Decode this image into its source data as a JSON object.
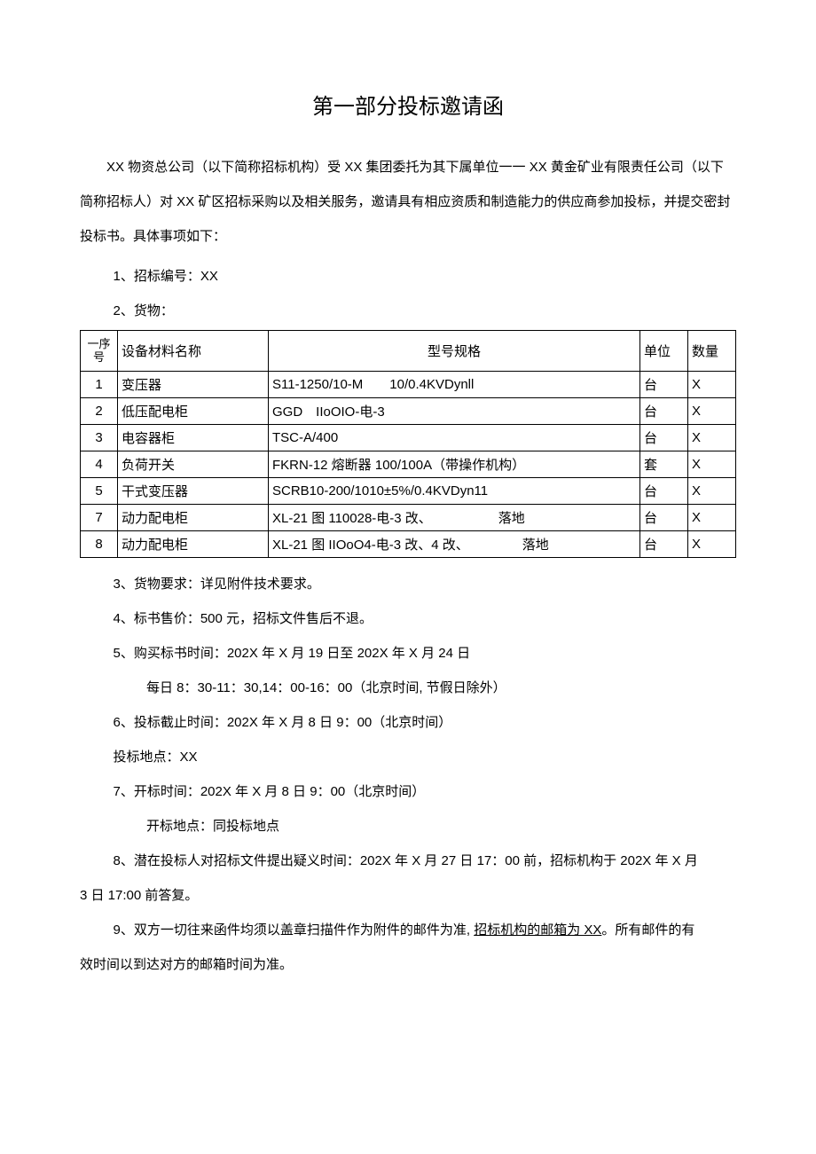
{
  "title": "第一部分投标邀请函",
  "intro": "XX 物资总公司（以下简称招标机构）受 XX 集团委托为其下属单位一一 XX 黄金矿业有限责任公司（以下简称招标人）对 XX 矿区招标采购以及相关服务，邀请具有相应资质和制造能力的供应商参加投标，并提交密封投标书。具体事项如下：",
  "item1": "1、招标编号：XX",
  "item2": "2、货物：",
  "table": {
    "headers": {
      "seq": "一序号",
      "name": "设备材料名称",
      "spec": "型号规格",
      "unit": "单位",
      "qty": "数量"
    },
    "rows": [
      {
        "seq": "1",
        "name": "变压器",
        "spec": "S11-1250/10-M  10/0.4KVDynll",
        "unit": "台",
        "qty": "X"
      },
      {
        "seq": "2",
        "name": "低压配电柜",
        "spec": "GGD IIoOIO-电-3",
        "unit": "台",
        "qty": "X"
      },
      {
        "seq": "3",
        "name": "电容器柜",
        "spec": "TSC-A/400",
        "unit": "台",
        "qty": "X"
      },
      {
        "seq": "4",
        "name": "负荷开关",
        "spec": "FKRN-12 熔断器 100/100A（带操作机构）",
        "unit": "套",
        "qty": "X"
      },
      {
        "seq": "5",
        "name": "干式变压器",
        "spec": "SCRB10-200/1010±5%/0.4KVDyn11",
        "unit": "台",
        "qty": "X"
      },
      {
        "seq": "7",
        "name": "动力配电柜",
        "spec": "XL-21 图 110028-电-3 改、     落地",
        "unit": "台",
        "qty": "X"
      },
      {
        "seq": "8",
        "name": "动力配电柜",
        "spec": "XL-21 图 IIOoO4-电-3 改、4 改、    落地",
        "unit": "台",
        "qty": "X"
      }
    ]
  },
  "item3": "3、货物要求：详见附件技术要求。",
  "item4": "4、标书售价：500 元，招标文件售后不退。",
  "item5": "5、购买标书时间：202X 年 X 月 19 日至 202X 年 X 月 24 日",
  "item5_sub": "每日 8：30-11：30,14：00-16：00（北京时间, 节假日除外）",
  "item6": "6、投标截止时间：202X 年 X 月 8 日 9：00（北京时间）",
  "item6_sub": "投标地点：XX",
  "item7": "7、开标时间：202X 年 X 月 8 日 9：00（北京时间）",
  "item7_sub": "开标地点：同投标地点",
  "item8_a": "8、潜在投标人对招标文件提出疑义时间：202X 年 X 月 27 日 17：00 前，招标机构于 202X 年 X 月",
  "item8_b": "3 日 17:00 前答复。",
  "item9_a": "9、双方一切往来函件均须以盖章扫描件作为附件的邮件为准, ",
  "item9_u": "招标机构的邮箱为 XX",
  "item9_b": "。所有邮件的有",
  "item9_c": "效时间以到达对方的邮箱时间为准。"
}
